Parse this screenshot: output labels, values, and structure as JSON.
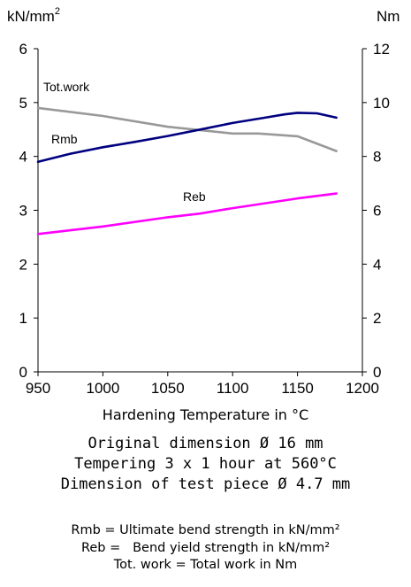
{
  "chart_data": {
    "type": "line",
    "title": "",
    "xlabel": "Hardening Temperature in °C",
    "left_axis": {
      "unit": "kN/mm",
      "unit_superscript": "2",
      "ylim": [
        0,
        6
      ],
      "ticks": [
        "0",
        "1",
        "2",
        "3",
        "4",
        "5",
        "6"
      ]
    },
    "right_axis": {
      "unit": "Nm",
      "ylim": [
        0,
        12
      ],
      "ticks": [
        "0",
        "2",
        "4",
        "6",
        "8",
        "10",
        "12"
      ]
    },
    "xlim": [
      950,
      1200
    ],
    "x_ticks": [
      "950",
      "1000",
      "1050",
      "1100",
      "1150",
      "1200"
    ],
    "grid": false,
    "series": [
      {
        "name": "Tot.work",
        "axis": "right",
        "color": "#999999",
        "x": [
          950,
          1000,
          1050,
          1100,
          1120,
          1150,
          1180
        ],
        "y": [
          9.8,
          9.5,
          9.1,
          8.85,
          8.85,
          8.75,
          8.2
        ]
      },
      {
        "name": "Rmb",
        "axis": "left",
        "color": "#000080",
        "x": [
          950,
          975,
          1000,
          1025,
          1050,
          1075,
          1100,
          1125,
          1140,
          1150,
          1165,
          1180
        ],
        "y": [
          3.9,
          4.05,
          4.17,
          4.27,
          4.38,
          4.5,
          4.62,
          4.72,
          4.78,
          4.81,
          4.8,
          4.72
        ]
      },
      {
        "name": "Reb",
        "axis": "left",
        "color": "#ff00ff",
        "x": [
          950,
          1000,
          1050,
          1075,
          1100,
          1125,
          1150,
          1180
        ],
        "y": [
          2.56,
          2.7,
          2.87,
          2.94,
          3.04,
          3.13,
          3.22,
          3.31
        ]
      }
    ]
  },
  "info_lines": [
    "Original dimension Ø 16 mm",
    "Tempering 3 x 1 hour at 560°C",
    "Dimension of test piece Ø 4.7 mm"
  ],
  "legend_lines": [
    "Rmb = Ultimate bend strength in kN/mm²",
    "Reb =   Bend yield strength in kN/mm²",
    "Tot. work = Total work in Nm"
  ]
}
